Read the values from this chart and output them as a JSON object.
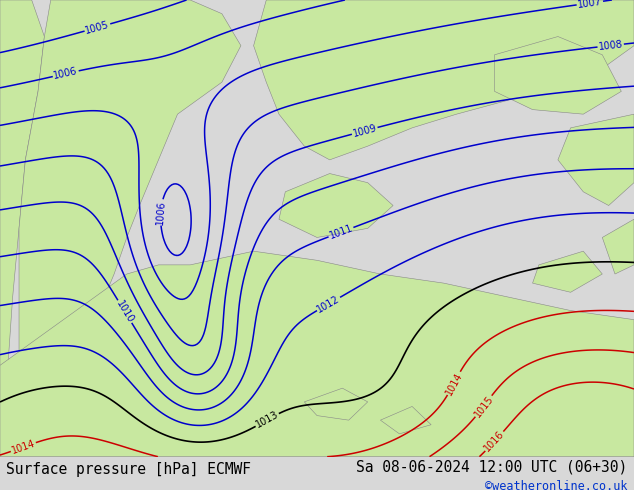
{
  "title_left": "Surface pressure [hPa] ECMWF",
  "title_right": "Sa 08-06-2024 12:00 UTC (06+30)",
  "credit": "©weatheronline.co.uk",
  "land_green": "#c8e8a0",
  "sea_gray": "#c0c0c0",
  "border_gray": "#888888",
  "contour_blue": "#0000cc",
  "contour_black": "#000000",
  "contour_red": "#cc0000",
  "title_fontsize": 10.5,
  "credit_fontsize": 8.5,
  "blue_levels": [
    1005,
    1006,
    1007,
    1008,
    1009,
    1010,
    1011,
    1012
  ],
  "black_levels": [
    1013
  ],
  "red_levels": [
    1014,
    1015,
    1016
  ]
}
